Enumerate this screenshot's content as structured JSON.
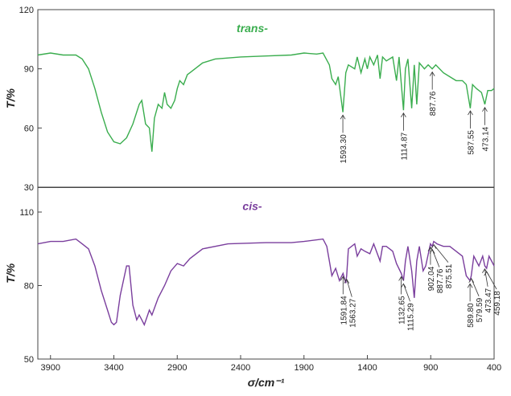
{
  "chart_data": [
    {
      "type": "line",
      "title": "trans-",
      "ylabel": "T/%",
      "xlim": [
        4000,
        400
      ],
      "ylim": [
        30,
        120
      ],
      "yticks": [
        30,
        60,
        90,
        120
      ],
      "x": [
        4000,
        3900,
        3800,
        3700,
        3650,
        3600,
        3550,
        3500,
        3450,
        3400,
        3350,
        3300,
        3250,
        3200,
        3180,
        3150,
        3120,
        3100,
        3080,
        3050,
        3020,
        3000,
        2980,
        2950,
        2920,
        2900,
        2880,
        2850,
        2820,
        2800,
        2700,
        2600,
        2400,
        2200,
        2000,
        1900,
        1800,
        1750,
        1700,
        1680,
        1650,
        1630,
        1593,
        1570,
        1550,
        1500,
        1480,
        1450,
        1420,
        1400,
        1380,
        1350,
        1320,
        1300,
        1280,
        1250,
        1200,
        1170,
        1150,
        1115,
        1100,
        1080,
        1050,
        1030,
        1010,
        990,
        950,
        920,
        888,
        860,
        800,
        750,
        700,
        650,
        620,
        588,
        570,
        540,
        500,
        473,
        450,
        420,
        400
      ],
      "series": [
        {
          "color": "#3aad4e",
          "values": [
            97,
            98,
            97,
            97,
            95,
            90,
            80,
            68,
            58,
            53,
            52,
            55,
            62,
            72,
            74,
            62,
            60,
            48,
            65,
            72,
            70,
            78,
            72,
            70,
            74,
            80,
            84,
            82,
            87,
            88,
            93,
            95,
            96,
            96.5,
            97,
            98,
            97.5,
            98,
            92,
            85,
            82,
            86,
            68,
            88,
            92,
            90,
            96,
            88,
            95,
            90,
            96,
            92,
            97,
            85,
            96,
            94,
            96,
            84,
            96,
            69,
            90,
            95,
            70,
            92,
            72,
            93,
            90,
            92,
            90,
            92,
            88,
            86,
            84,
            84,
            82,
            70,
            82,
            80,
            78,
            72,
            79,
            79,
            80
          ]
        }
      ],
      "annotations": [
        {
          "value": 1593.3,
          "label": "1593.30"
        },
        {
          "value": 1114.87,
          "label": "1114.87"
        },
        {
          "value": 887.76,
          "label": "887.76"
        },
        {
          "value": 587.55,
          "label": "587.55"
        },
        {
          "value": 473.14,
          "label": "473.14"
        }
      ]
    },
    {
      "type": "line",
      "title": "cis-",
      "ylabel": "T/%",
      "xlabel": "σ/cm⁻¹",
      "xlim": [
        4000,
        400
      ],
      "ylim": [
        50,
        120
      ],
      "yticks": [
        50,
        80,
        110
      ],
      "xticks": [
        3900,
        3400,
        2900,
        2400,
        1900,
        1400,
        900,
        400
      ],
      "x": [
        4000,
        3900,
        3800,
        3700,
        3650,
        3600,
        3550,
        3500,
        3450,
        3420,
        3400,
        3380,
        3350,
        3300,
        3280,
        3250,
        3220,
        3200,
        3180,
        3160,
        3140,
        3120,
        3100,
        3050,
        3000,
        2950,
        2900,
        2850,
        2800,
        2700,
        2500,
        2200,
        2000,
        1900,
        1750,
        1720,
        1700,
        1680,
        1650,
        1620,
        1592,
        1570,
        1563,
        1550,
        1500,
        1480,
        1450,
        1420,
        1380,
        1350,
        1300,
        1280,
        1250,
        1200,
        1170,
        1133,
        1115,
        1100,
        1080,
        1050,
        1030,
        1010,
        990,
        960,
        940,
        902,
        888,
        876,
        850,
        800,
        750,
        700,
        650,
        620,
        590,
        580,
        560,
        520,
        490,
        473,
        459,
        440,
        420,
        400
      ],
      "series": [
        {
          "color": "#7a3e9d",
          "values": [
            97,
            98,
            98,
            99,
            97,
            95,
            88,
            78,
            70,
            65,
            64,
            65,
            76,
            88,
            88,
            72,
            66,
            68,
            66,
            64,
            67,
            70,
            68,
            75,
            80,
            86,
            89,
            88,
            91,
            95,
            97,
            97.5,
            97.5,
            98,
            99,
            96,
            90,
            84,
            87,
            82,
            85,
            81,
            84,
            95,
            97,
            92,
            95,
            94,
            93,
            97,
            90,
            96,
            96,
            94,
            89,
            85,
            82,
            90,
            96,
            86,
            75,
            90,
            96,
            86,
            88,
            97,
            96,
            98,
            97,
            96,
            96,
            94,
            92,
            84,
            82,
            84,
            92,
            88,
            92,
            88,
            87,
            92,
            90,
            88
          ]
        }
      ],
      "annotations": [
        {
          "value": 1591.84,
          "label": "1591.84"
        },
        {
          "value": 1563.27,
          "label": "1563.27"
        },
        {
          "value": 1132.65,
          "label": "1132.65"
        },
        {
          "value": 1115.29,
          "label": "1115.29"
        },
        {
          "value": 902.04,
          "label": "902.04"
        },
        {
          "value": 887.76,
          "label": "887.76"
        },
        {
          "value": 875.51,
          "label": "875.51"
        },
        {
          "value": 589.8,
          "label": "589.80"
        },
        {
          "value": 579.59,
          "label": "579.59"
        },
        {
          "value": 473.47,
          "label": "473.47"
        },
        {
          "value": 459.18,
          "label": "459.18"
        }
      ]
    }
  ]
}
